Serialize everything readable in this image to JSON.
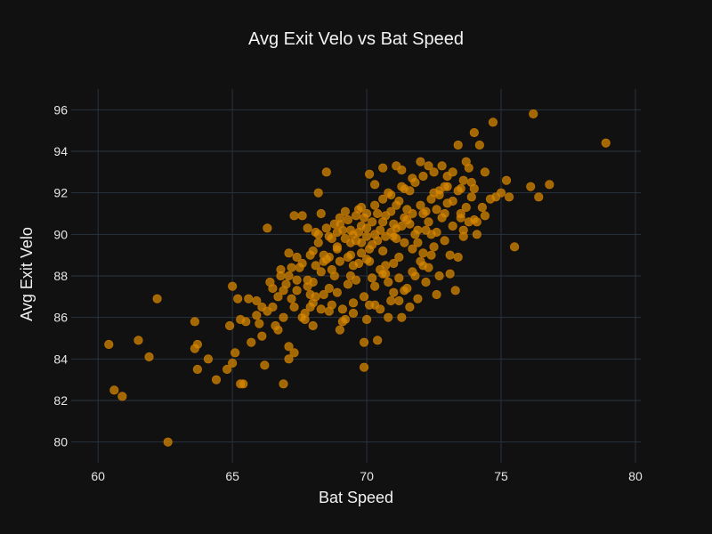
{
  "chart_data": {
    "type": "scatter",
    "title": "Avg Exit Velo vs Bat Speed",
    "xlabel": "Bat Speed",
    "ylabel": "Avg Exit Velo",
    "xlim": [
      59,
      80.2
    ],
    "ylim": [
      79,
      97
    ],
    "xticks": [
      60,
      65,
      70,
      75,
      80
    ],
    "yticks": [
      80,
      82,
      84,
      86,
      88,
      90,
      92,
      94,
      96
    ],
    "grid": true,
    "marker_color": "#d98a00",
    "background_color": "#111111",
    "points": [
      [
        60.4,
        84.7
      ],
      [
        60.6,
        82.5
      ],
      [
        60.9,
        82.2
      ],
      [
        61.5,
        84.9
      ],
      [
        61.9,
        84.1
      ],
      [
        62.2,
        86.9
      ],
      [
        62.6,
        80.0
      ],
      [
        63.6,
        85.8
      ],
      [
        63.6,
        84.5
      ],
      [
        63.7,
        84.7
      ],
      [
        63.7,
        83.5
      ],
      [
        64.1,
        84.0
      ],
      [
        64.4,
        83.0
      ],
      [
        64.8,
        83.5
      ],
      [
        64.9,
        85.6
      ],
      [
        65.0,
        87.5
      ],
      [
        65.0,
        83.8
      ],
      [
        65.1,
        84.3
      ],
      [
        65.2,
        86.9
      ],
      [
        65.3,
        85.9
      ],
      [
        65.3,
        82.8
      ],
      [
        65.4,
        82.8
      ],
      [
        65.5,
        85.8
      ],
      [
        65.6,
        86.9
      ],
      [
        65.7,
        84.8
      ],
      [
        65.9,
        86.8
      ],
      [
        66.1,
        85.1
      ],
      [
        66.2,
        83.7
      ],
      [
        66.3,
        86.3
      ],
      [
        66.3,
        90.3
      ],
      [
        66.4,
        87.7
      ],
      [
        66.5,
        86.5
      ],
      [
        66.6,
        85.6
      ],
      [
        66.7,
        87.0
      ],
      [
        66.8,
        88.0
      ],
      [
        66.8,
        88.3
      ],
      [
        66.9,
        87.3
      ],
      [
        66.9,
        86.0
      ],
      [
        66.9,
        82.8
      ],
      [
        67.0,
        87.6
      ],
      [
        67.1,
        84.0
      ],
      [
        67.1,
        84.6
      ],
      [
        67.1,
        89.1
      ],
      [
        67.2,
        86.9
      ],
      [
        67.3,
        84.3
      ],
      [
        67.3,
        86.5
      ],
      [
        67.4,
        88.9
      ],
      [
        67.4,
        87.3
      ],
      [
        67.5,
        88.4
      ],
      [
        67.6,
        90.9
      ],
      [
        67.7,
        86.2
      ],
      [
        67.7,
        85.9
      ],
      [
        67.8,
        87.8
      ],
      [
        67.8,
        87.5
      ],
      [
        67.9,
        89.0
      ],
      [
        67.9,
        86.5
      ],
      [
        68.0,
        87.7
      ],
      [
        68.0,
        85.6
      ],
      [
        68.1,
        87.0
      ],
      [
        68.1,
        88.5
      ],
      [
        68.2,
        89.6
      ],
      [
        68.2,
        92.0
      ],
      [
        68.3,
        88.2
      ],
      [
        68.3,
        91.0
      ],
      [
        68.4,
        89.0
      ],
      [
        68.4,
        87.1
      ],
      [
        68.5,
        88.8
      ],
      [
        68.6,
        87.4
      ],
      [
        68.6,
        86.3
      ],
      [
        68.7,
        88.3
      ],
      [
        68.7,
        86.6
      ],
      [
        68.8,
        90.5
      ],
      [
        68.8,
        88.0
      ],
      [
        68.9,
        89.4
      ],
      [
        68.9,
        87.2
      ],
      [
        69.0,
        90.8
      ],
      [
        69.0,
        88.7
      ],
      [
        69.1,
        86.4
      ],
      [
        69.1,
        85.8
      ],
      [
        69.2,
        89.8
      ],
      [
        69.3,
        88.9
      ],
      [
        69.3,
        87.6
      ],
      [
        69.4,
        90.2
      ],
      [
        69.4,
        89.0
      ],
      [
        69.5,
        88.5
      ],
      [
        69.5,
        86.7
      ],
      [
        69.6,
        89.7
      ],
      [
        69.6,
        87.8
      ],
      [
        69.7,
        90.1
      ],
      [
        69.8,
        91.3
      ],
      [
        69.8,
        89.1
      ],
      [
        69.9,
        87.0
      ],
      [
        69.9,
        84.8
      ],
      [
        70.0,
        90.3
      ],
      [
        70.0,
        88.8
      ],
      [
        70.1,
        92.9
      ],
      [
        70.1,
        86.6
      ],
      [
        70.2,
        89.5
      ],
      [
        70.3,
        90.0
      ],
      [
        70.3,
        87.5
      ],
      [
        70.4,
        91.0
      ],
      [
        70.5,
        88.3
      ],
      [
        70.5,
        86.4
      ],
      [
        70.6,
        90.6
      ],
      [
        70.6,
        89.2
      ],
      [
        70.7,
        89.9
      ],
      [
        70.7,
        88.1
      ],
      [
        70.8,
        87.7
      ],
      [
        70.9,
        90.1
      ],
      [
        70.9,
        86.8
      ],
      [
        71.0,
        90.5
      ],
      [
        71.0,
        88.6
      ],
      [
        71.1,
        89.8
      ],
      [
        71.1,
        91.4
      ],
      [
        71.2,
        88.9
      ],
      [
        71.2,
        87.9
      ],
      [
        71.3,
        90.4
      ],
      [
        71.3,
        86.0
      ],
      [
        71.4,
        89.6
      ],
      [
        71.5,
        90.7
      ],
      [
        71.5,
        87.4
      ],
      [
        71.6,
        92.1
      ],
      [
        71.7,
        89.3
      ],
      [
        71.7,
        88.2
      ],
      [
        71.8,
        90.0
      ],
      [
        71.9,
        86.9
      ],
      [
        72.0,
        93.5
      ],
      [
        72.0,
        88.7
      ],
      [
        72.1,
        91.0
      ],
      [
        72.1,
        89.1
      ],
      [
        72.2,
        90.2
      ],
      [
        72.3,
        88.4
      ],
      [
        72.4,
        91.7
      ],
      [
        72.4,
        90.0
      ],
      [
        72.5,
        93.0
      ],
      [
        72.5,
        89.4
      ],
      [
        72.6,
        91.2
      ],
      [
        72.7,
        88.0
      ],
      [
        72.8,
        93.3
      ],
      [
        72.8,
        90.8
      ],
      [
        72.9,
        92.3
      ],
      [
        72.9,
        89.7
      ],
      [
        73.0,
        91.5
      ],
      [
        73.1,
        88.1
      ],
      [
        73.2,
        93.0
      ],
      [
        73.2,
        90.4
      ],
      [
        73.3,
        87.3
      ],
      [
        73.4,
        94.3
      ],
      [
        73.5,
        91.0
      ],
      [
        73.6,
        92.6
      ],
      [
        73.6,
        89.9
      ],
      [
        73.7,
        93.5
      ],
      [
        73.8,
        90.6
      ],
      [
        73.9,
        91.8
      ],
      [
        74.0,
        94.9
      ],
      [
        74.0,
        92.2
      ],
      [
        74.1,
        90.0
      ],
      [
        74.2,
        94.3
      ],
      [
        74.3,
        91.3
      ],
      [
        74.4,
        90.9
      ],
      [
        74.6,
        91.7
      ],
      [
        74.7,
        95.4
      ],
      [
        74.8,
        91.8
      ],
      [
        75.0,
        92.0
      ],
      [
        75.2,
        92.6
      ],
      [
        75.3,
        91.8
      ],
      [
        75.5,
        89.4
      ],
      [
        76.1,
        92.3
      ],
      [
        76.2,
        95.8
      ],
      [
        76.4,
        91.8
      ],
      [
        76.8,
        92.4
      ],
      [
        78.9,
        94.4
      ],
      [
        67.4,
        87.8
      ],
      [
        67.6,
        88.6
      ],
      [
        67.9,
        87.1
      ],
      [
        68.0,
        89.2
      ],
      [
        68.2,
        90.0
      ],
      [
        68.4,
        88.7
      ],
      [
        68.5,
        90.3
      ],
      [
        68.7,
        89.8
      ],
      [
        68.9,
        90.1
      ],
      [
        69.0,
        90.5
      ],
      [
        69.1,
        90.2
      ],
      [
        69.2,
        91.1
      ],
      [
        69.3,
        90.7
      ],
      [
        69.4,
        89.6
      ],
      [
        69.5,
        90.0
      ],
      [
        69.6,
        90.9
      ],
      [
        69.7,
        91.2
      ],
      [
        69.8,
        90.4
      ],
      [
        69.9,
        90.8
      ],
      [
        70.0,
        91.0
      ],
      [
        70.1,
        89.3
      ],
      [
        70.2,
        90.6
      ],
      [
        70.3,
        91.4
      ],
      [
        70.4,
        89.7
      ],
      [
        70.5,
        90.2
      ],
      [
        70.6,
        91.7
      ],
      [
        70.7,
        90.9
      ],
      [
        70.8,
        92.0
      ],
      [
        70.9,
        91.1
      ],
      [
        71.0,
        89.9
      ],
      [
        71.1,
        90.3
      ],
      [
        71.2,
        91.6
      ],
      [
        71.3,
        92.3
      ],
      [
        71.4,
        90.8
      ],
      [
        71.5,
        91.2
      ],
      [
        71.6,
        90.5
      ],
      [
        71.7,
        91.0
      ],
      [
        71.8,
        92.5
      ],
      [
        71.9,
        90.2
      ],
      [
        72.0,
        91.4
      ],
      [
        72.1,
        92.8
      ],
      [
        72.2,
        91.1
      ],
      [
        72.3,
        90.6
      ],
      [
        72.5,
        92.0
      ],
      [
        72.6,
        90.1
      ],
      [
        72.7,
        91.9
      ],
      [
        72.9,
        91.0
      ],
      [
        73.0,
        92.8
      ],
      [
        73.2,
        91.6
      ],
      [
        73.4,
        92.1
      ],
      [
        73.5,
        90.8
      ],
      [
        73.7,
        91.3
      ],
      [
        73.9,
        92.5
      ],
      [
        70.0,
        85.9
      ],
      [
        69.0,
        85.4
      ],
      [
        68.6,
        88.9
      ],
      [
        68.3,
        86.4
      ],
      [
        67.2,
        88.4
      ],
      [
        66.7,
        85.4
      ],
      [
        66.0,
        85.7
      ],
      [
        70.4,
        84.9
      ],
      [
        69.9,
        83.6
      ],
      [
        71.2,
        86.8
      ],
      [
        71.6,
        86.5
      ],
      [
        72.2,
        87.7
      ],
      [
        72.6,
        87.1
      ],
      [
        73.1,
        89.0
      ],
      [
        73.4,
        88.9
      ],
      [
        71.9,
        89.6
      ],
      [
        70.7,
        88.5
      ],
      [
        70.2,
        87.9
      ],
      [
        69.4,
        88.0
      ],
      [
        69.7,
        88.6
      ],
      [
        68.9,
        89.3
      ],
      [
        68.6,
        89.9
      ],
      [
        69.8,
        89.6
      ],
      [
        70.0,
        89.9
      ],
      [
        70.1,
        88.7
      ],
      [
        70.6,
        88.1
      ],
      [
        71.0,
        87.2
      ],
      [
        71.4,
        87.3
      ],
      [
        71.8,
        88.0
      ],
      [
        72.1,
        88.5
      ],
      [
        72.4,
        89.0
      ],
      [
        73.6,
        90.2
      ],
      [
        74.1,
        90.6
      ],
      [
        73.8,
        93.2
      ],
      [
        74.4,
        93.0
      ],
      [
        72.3,
        93.3
      ],
      [
        71.1,
        93.3
      ],
      [
        71.3,
        93.1
      ],
      [
        70.6,
        93.2
      ],
      [
        68.5,
        93.0
      ],
      [
        71.7,
        92.7
      ],
      [
        73.0,
        92.3
      ],
      [
        72.7,
        92.1
      ],
      [
        71.4,
        92.2
      ],
      [
        70.3,
        92.4
      ],
      [
        70.9,
        91.9
      ],
      [
        73.5,
        92.2
      ],
      [
        74.0,
        90.7
      ],
      [
        68.1,
        90.1
      ],
      [
        67.8,
        90.3
      ],
      [
        67.3,
        90.9
      ],
      [
        67.1,
        88.0
      ],
      [
        66.5,
        87.4
      ],
      [
        66.1,
        86.5
      ],
      [
        65.9,
        86.1
      ],
      [
        67.6,
        86.0
      ],
      [
        68.0,
        86.7
      ],
      [
        69.2,
        85.9
      ],
      [
        69.5,
        86.2
      ],
      [
        70.3,
        86.6
      ],
      [
        70.8,
        86.0
      ]
    ]
  }
}
